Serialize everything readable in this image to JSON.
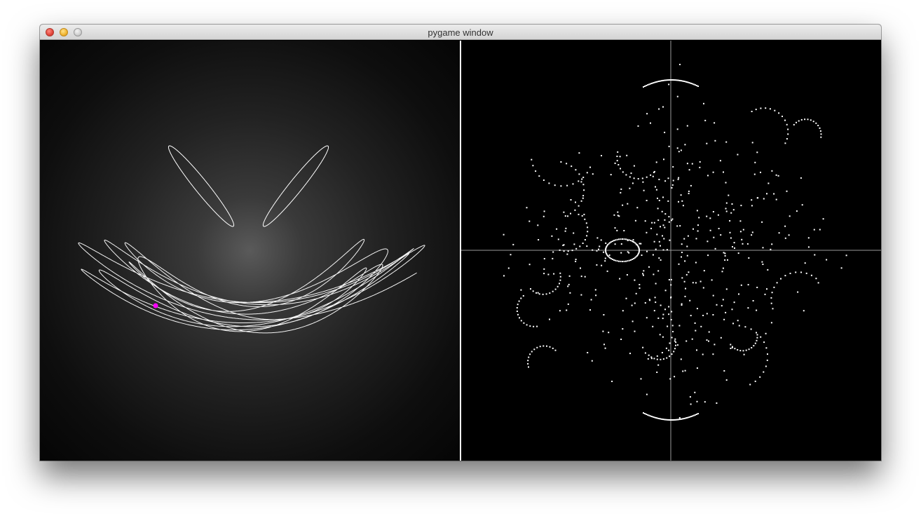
{
  "window": {
    "title": "pygame window"
  },
  "colors": {
    "trail": "#ffffff",
    "bob": "#ff00ff",
    "axis": "#9a9a9a",
    "dots": "#ffffff"
  },
  "icons": {
    "close": "close-button-icon",
    "minimize": "minimize-button-icon",
    "zoom": "zoom-button-icon"
  }
}
